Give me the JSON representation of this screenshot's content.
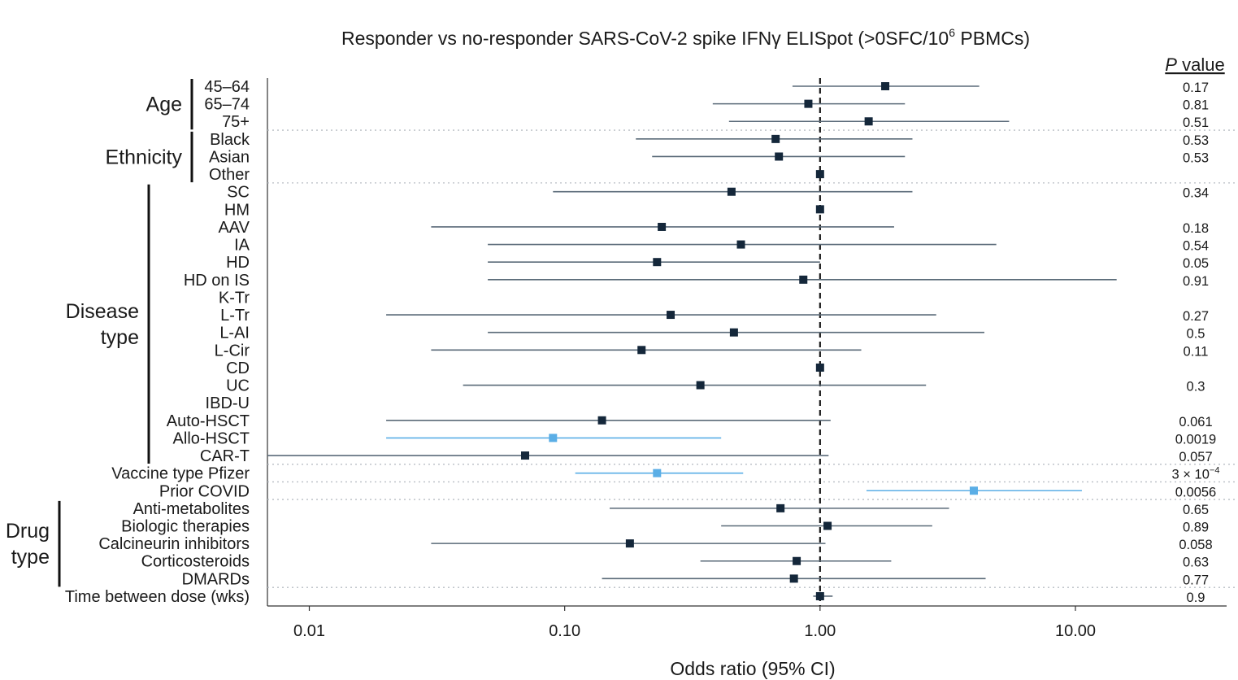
{
  "chart_data": {
    "type": "forest",
    "title": "Responder vs no-responder SARS-CoV-2 spike IFNγ ELISpot (>0SFC/10",
    "title_sup": "6",
    "title_end": " PBMCs)",
    "xlabel": "Odds ratio (95% CI)",
    "x_scale": "log",
    "xlim": [
      0.0065,
      23
    ],
    "reference_line": 1.0,
    "x_ticks": [
      {
        "value": 0.01,
        "label": "0.01"
      },
      {
        "value": 0.1,
        "label": "0.10"
      },
      {
        "value": 1.0,
        "label": "1.00"
      },
      {
        "value": 10.0,
        "label": "10.00"
      }
    ],
    "pvalue_header_italic": "P",
    "pvalue_header_rest": " value",
    "colors": {
      "normal": "#14273a",
      "significant": "#5aaee6",
      "ci_normal": "#5a6a78",
      "separator": "#b8bec4"
    },
    "groups": [
      {
        "label_lines": [
          "Age"
        ],
        "first_row": 0,
        "last_row": 2,
        "bar": "inner"
      },
      {
        "label_lines": [
          "Ethnicity"
        ],
        "first_row": 3,
        "last_row": 5,
        "bar": "inner"
      },
      {
        "label_lines": [
          "Disease",
          "type"
        ],
        "first_row": 6,
        "last_row": 21,
        "bar": "outer"
      },
      {
        "label_lines": [
          "Drug",
          "type"
        ],
        "first_row": 24,
        "last_row": 28,
        "bar": "outer"
      }
    ],
    "separators_after_rows": [
      2,
      5,
      21,
      22,
      23,
      28
    ],
    "rows": [
      {
        "label": "45–64",
        "or": 1.8,
        "lo": 0.78,
        "hi": 4.2,
        "p": "0.17",
        "significant": false
      },
      {
        "label": "65–74",
        "or": 0.9,
        "lo": 0.38,
        "hi": 2.15,
        "p": "0.81",
        "significant": false
      },
      {
        "label": "75+",
        "or": 1.55,
        "lo": 0.44,
        "hi": 5.5,
        "p": "0.51",
        "significant": false
      },
      {
        "label": "Black",
        "or": 0.67,
        "lo": 0.19,
        "hi": 2.3,
        "p": "0.53",
        "significant": false
      },
      {
        "label": "Asian",
        "or": 0.69,
        "lo": 0.22,
        "hi": 2.15,
        "p": "0.53",
        "significant": false
      },
      {
        "label": "Other",
        "or": 1.0,
        "lo": null,
        "hi": null,
        "p": "",
        "significant": false
      },
      {
        "label": "SC",
        "or": 0.45,
        "lo": 0.09,
        "hi": 2.3,
        "p": "0.34",
        "significant": false
      },
      {
        "label": "HM",
        "or": 1.0,
        "lo": null,
        "hi": null,
        "p": "",
        "significant": false
      },
      {
        "label": "AAV",
        "or": 0.24,
        "lo": 0.03,
        "hi": 1.95,
        "p": "0.18",
        "significant": false
      },
      {
        "label": "IA",
        "or": 0.49,
        "lo": 0.05,
        "hi": 4.9,
        "p": "0.54",
        "significant": false
      },
      {
        "label": "HD",
        "or": 0.23,
        "lo": 0.05,
        "hi": 1.0,
        "p": "0.05",
        "significant": false
      },
      {
        "label": "HD on IS",
        "or": 0.86,
        "lo": 0.05,
        "hi": 14.5,
        "p": "0.91",
        "significant": false
      },
      {
        "label": "K-Tr",
        "or": null,
        "lo": null,
        "hi": null,
        "p": "",
        "significant": false
      },
      {
        "label": "L-Tr",
        "or": 0.26,
        "lo": 0.02,
        "hi": 2.85,
        "p": "0.27",
        "significant": false
      },
      {
        "label": "L-AI",
        "or": 0.46,
        "lo": 0.05,
        "hi": 4.4,
        "p": "0.5",
        "significant": false
      },
      {
        "label": "L-Cir",
        "or": 0.2,
        "lo": 0.03,
        "hi": 1.45,
        "p": "0.11",
        "significant": false
      },
      {
        "label": "CD",
        "or": 1.0,
        "lo": null,
        "hi": null,
        "p": "",
        "significant": false
      },
      {
        "label": "UC",
        "or": 0.34,
        "lo": 0.04,
        "hi": 2.6,
        "p": "0.3",
        "significant": false
      },
      {
        "label": "IBD-U",
        "or": null,
        "lo": null,
        "hi": null,
        "p": "",
        "significant": false
      },
      {
        "label": "Auto-HSCT",
        "or": 0.14,
        "lo": 0.02,
        "hi": 1.1,
        "p": "0.061",
        "significant": false
      },
      {
        "label": "Allo-HSCT",
        "or": 0.09,
        "lo": 0.02,
        "hi": 0.41,
        "p": "0.0019",
        "significant": true
      },
      {
        "label": "CAR-T",
        "or": 0.07,
        "lo": 0.0065,
        "hi": 1.08,
        "p": "0.057",
        "significant": false
      },
      {
        "label": "Vaccine type Pfizer",
        "or": 0.23,
        "lo": 0.11,
        "hi": 0.5,
        "p": "3 × 10",
        "p_sup": "−4",
        "significant": true
      },
      {
        "label": "Prior COVID",
        "or": 4.0,
        "lo": 1.52,
        "hi": 10.6,
        "p": "0.0056",
        "significant": true
      },
      {
        "label": "Anti-metabolites",
        "or": 0.7,
        "lo": 0.15,
        "hi": 3.2,
        "p": "0.65",
        "significant": false
      },
      {
        "label": "Biologic therapies",
        "or": 1.07,
        "lo": 0.41,
        "hi": 2.75,
        "p": "0.89",
        "significant": false
      },
      {
        "label": "Calcineurin inhibitors",
        "or": 0.18,
        "lo": 0.03,
        "hi": 1.05,
        "p": "0.058",
        "significant": false
      },
      {
        "label": "Corticosteroids",
        "or": 0.81,
        "lo": 0.34,
        "hi": 1.9,
        "p": "0.63",
        "significant": false
      },
      {
        "label": "DMARDs",
        "or": 0.79,
        "lo": 0.14,
        "hi": 4.45,
        "p": "0.77",
        "significant": false
      },
      {
        "label": "Time between dose (wks)",
        "or": 1.0,
        "lo": 0.94,
        "hi": 1.12,
        "p": "0.9",
        "significant": false
      }
    ]
  }
}
